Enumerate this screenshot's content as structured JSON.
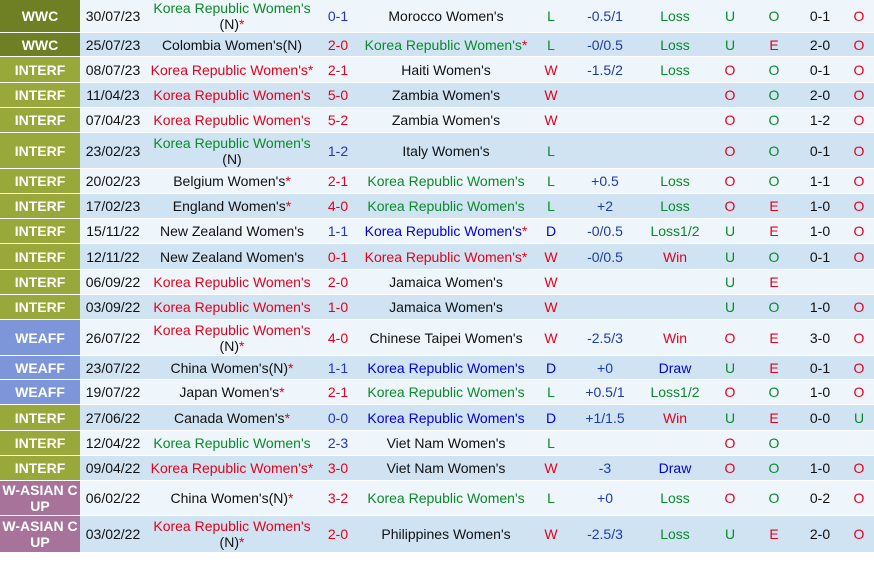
{
  "colors": {
    "home_red": "#e6001a",
    "team_green": "#0a8a2a",
    "team_blue": "#0000e0",
    "wwc_bg": "#6f7f24",
    "interf_bg": "#99a83a",
    "weaff_bg": "#7d95d9",
    "wasian_bg": "#a7739b"
  },
  "rows": [
    {
      "comp": "WWC",
      "date": "30/07/23",
      "home": "Korea Republic Women's",
      "home_suffix": "(N)",
      "home_star": "*",
      "home_color": "green",
      "score": "0-1",
      "score_color": "blue",
      "away": "Morocco Women's",
      "away_suffix": "",
      "away_star": "",
      "away_color": "black",
      "result": "L",
      "result_color": "green",
      "hc": "-0.5/1",
      "hc_res": "Loss",
      "hc_res_color": "green",
      "ou": "U",
      "ou_color": "green",
      "oe": "O",
      "oe_color": "green",
      "ht": "0-1",
      "last": "O",
      "last_color": "red"
    },
    {
      "comp": "WWC",
      "date": "25/07/23",
      "home": "Colombia Women's(N)",
      "home_suffix": "",
      "home_star": "",
      "home_color": "black",
      "score": "2-0",
      "score_color": "red",
      "away": "Korea Republic Women's",
      "away_suffix": "",
      "away_star": "*",
      "away_color": "green",
      "result": "L",
      "result_color": "green",
      "hc": "-0/0.5",
      "hc_res": "Loss",
      "hc_res_color": "green",
      "ou": "U",
      "ou_color": "green",
      "oe": "E",
      "oe_color": "red",
      "ht": "2-0",
      "last": "O",
      "last_color": "red"
    },
    {
      "comp": "INTERF",
      "date": "08/07/23",
      "home": "Korea Republic Women's",
      "home_suffix": "",
      "home_star": "*",
      "home_color": "red",
      "score": "2-1",
      "score_color": "red",
      "away": "Haiti Women's",
      "away_suffix": "",
      "away_star": "",
      "away_color": "black",
      "result": "W",
      "result_color": "red",
      "hc": "-1.5/2",
      "hc_res": "Loss",
      "hc_res_color": "green",
      "ou": "O",
      "ou_color": "red",
      "oe": "O",
      "oe_color": "green",
      "ht": "0-1",
      "last": "O",
      "last_color": "red"
    },
    {
      "comp": "INTERF",
      "date": "11/04/23",
      "home": "Korea Republic Women's",
      "home_suffix": "",
      "home_star": "",
      "home_color": "red",
      "score": "5-0",
      "score_color": "red",
      "away": "Zambia Women's",
      "away_suffix": "",
      "away_star": "",
      "away_color": "black",
      "result": "W",
      "result_color": "red",
      "hc": "",
      "hc_res": "",
      "hc_res_color": "green",
      "ou": "O",
      "ou_color": "red",
      "oe": "O",
      "oe_color": "green",
      "ht": "2-0",
      "last": "O",
      "last_color": "red"
    },
    {
      "comp": "INTERF",
      "date": "07/04/23",
      "home": "Korea Republic Women's",
      "home_suffix": "",
      "home_star": "",
      "home_color": "red",
      "score": "5-2",
      "score_color": "red",
      "away": "Zambia Women's",
      "away_suffix": "",
      "away_star": "",
      "away_color": "black",
      "result": "W",
      "result_color": "red",
      "hc": "",
      "hc_res": "",
      "hc_res_color": "green",
      "ou": "O",
      "ou_color": "red",
      "oe": "O",
      "oe_color": "green",
      "ht": "1-2",
      "last": "O",
      "last_color": "red"
    },
    {
      "comp": "INTERF",
      "date": "23/02/23",
      "home": "Korea Republic Women's",
      "home_suffix": "(N)",
      "home_star": "",
      "home_color": "green",
      "score": "1-2",
      "score_color": "blue",
      "away": "Italy Women's",
      "away_suffix": "",
      "away_star": "",
      "away_color": "black",
      "result": "L",
      "result_color": "green",
      "hc": "",
      "hc_res": "",
      "hc_res_color": "green",
      "ou": "O",
      "ou_color": "red",
      "oe": "O",
      "oe_color": "green",
      "ht": "0-1",
      "last": "O",
      "last_color": "red"
    },
    {
      "comp": "INTERF",
      "date": "20/02/23",
      "home": "Belgium Women's",
      "home_suffix": "",
      "home_star": "*",
      "home_color": "black",
      "score": "2-1",
      "score_color": "red",
      "away": "Korea Republic Women's",
      "away_suffix": "",
      "away_star": "",
      "away_color": "green",
      "result": "L",
      "result_color": "green",
      "hc": "+0.5",
      "hc_res": "Loss",
      "hc_res_color": "green",
      "ou": "O",
      "ou_color": "red",
      "oe": "O",
      "oe_color": "green",
      "ht": "1-1",
      "last": "O",
      "last_color": "red"
    },
    {
      "comp": "INTERF",
      "date": "17/02/23",
      "home": "England Women's",
      "home_suffix": "",
      "home_star": "*",
      "home_color": "black",
      "score": "4-0",
      "score_color": "red",
      "away": "Korea Republic Women's",
      "away_suffix": "",
      "away_star": "",
      "away_color": "green",
      "result": "L",
      "result_color": "green",
      "hc": "+2",
      "hc_res": "Loss",
      "hc_res_color": "green",
      "ou": "O",
      "ou_color": "red",
      "oe": "E",
      "oe_color": "red",
      "ht": "1-0",
      "last": "O",
      "last_color": "red"
    },
    {
      "comp": "INTERF",
      "date": "15/11/22",
      "home": "New Zealand Women's",
      "home_suffix": "",
      "home_star": "",
      "home_color": "black",
      "score": "1-1",
      "score_color": "blue",
      "away": "Korea Republic Women's",
      "away_suffix": "",
      "away_star": "*",
      "away_color": "blue",
      "result": "D",
      "result_color": "blue",
      "hc": "-0/0.5",
      "hc_res": "Loss1/2",
      "hc_res_color": "green",
      "ou": "U",
      "ou_color": "green",
      "oe": "E",
      "oe_color": "red",
      "ht": "1-0",
      "last": "O",
      "last_color": "red"
    },
    {
      "comp": "INTERF",
      "date": "12/11/22",
      "home": "New Zealand Women's",
      "home_suffix": "",
      "home_star": "",
      "home_color": "black",
      "score": "0-1",
      "score_color": "red",
      "away": "Korea Republic Women's",
      "away_suffix": "",
      "away_star": "*",
      "away_color": "red",
      "result": "W",
      "result_color": "red",
      "hc": "-0/0.5",
      "hc_res": "Win",
      "hc_res_color": "red",
      "ou": "U",
      "ou_color": "green",
      "oe": "O",
      "oe_color": "green",
      "ht": "0-1",
      "last": "O",
      "last_color": "red"
    },
    {
      "comp": "INTERF",
      "date": "06/09/22",
      "home": "Korea Republic Women's",
      "home_suffix": "",
      "home_star": "",
      "home_color": "red",
      "score": "2-0",
      "score_color": "red",
      "away": "Jamaica Women's",
      "away_suffix": "",
      "away_star": "",
      "away_color": "black",
      "result": "W",
      "result_color": "red",
      "hc": "",
      "hc_res": "",
      "hc_res_color": "green",
      "ou": "U",
      "ou_color": "green",
      "oe": "E",
      "oe_color": "red",
      "ht": "",
      "last": "",
      "last_color": "red"
    },
    {
      "comp": "INTERF",
      "date": "03/09/22",
      "home": "Korea Republic Women's",
      "home_suffix": "",
      "home_star": "",
      "home_color": "red",
      "score": "1-0",
      "score_color": "red",
      "away": "Jamaica Women's",
      "away_suffix": "",
      "away_star": "",
      "away_color": "black",
      "result": "W",
      "result_color": "red",
      "hc": "",
      "hc_res": "",
      "hc_res_color": "green",
      "ou": "U",
      "ou_color": "green",
      "oe": "O",
      "oe_color": "green",
      "ht": "1-0",
      "last": "O",
      "last_color": "red"
    },
    {
      "comp": "WEAFF",
      "date": "26/07/22",
      "home": "Korea Republic Women's",
      "home_suffix": "(N)",
      "home_star": "*",
      "home_color": "red",
      "score": "4-0",
      "score_color": "red",
      "away": "Chinese Taipei Women's",
      "away_suffix": "",
      "away_star": "",
      "away_color": "black",
      "result": "W",
      "result_color": "red",
      "hc": "-2.5/3",
      "hc_res": "Win",
      "hc_res_color": "red",
      "ou": "O",
      "ou_color": "red",
      "oe": "E",
      "oe_color": "red",
      "ht": "3-0",
      "last": "O",
      "last_color": "red"
    },
    {
      "comp": "WEAFF",
      "date": "23/07/22",
      "home": "China Women's(N)",
      "home_suffix": "",
      "home_star": "*",
      "home_color": "black",
      "score": "1-1",
      "score_color": "blue",
      "away": "Korea Republic Women's",
      "away_suffix": "",
      "away_star": "",
      "away_color": "blue",
      "result": "D",
      "result_color": "blue",
      "hc": "+0",
      "hc_res": "Draw",
      "hc_res_color": "blue",
      "ou": "U",
      "ou_color": "green",
      "oe": "E",
      "oe_color": "red",
      "ht": "0-1",
      "last": "O",
      "last_color": "red"
    },
    {
      "comp": "WEAFF",
      "date": "19/07/22",
      "home": "Japan Women's",
      "home_suffix": "",
      "home_star": "*",
      "home_color": "black",
      "score": "2-1",
      "score_color": "red",
      "away": "Korea Republic Women's",
      "away_suffix": "",
      "away_star": "",
      "away_color": "green",
      "result": "L",
      "result_color": "green",
      "hc": "+0.5/1",
      "hc_res": "Loss1/2",
      "hc_res_color": "green",
      "ou": "O",
      "ou_color": "red",
      "oe": "O",
      "oe_color": "green",
      "ht": "1-0",
      "last": "O",
      "last_color": "red"
    },
    {
      "comp": "INTERF",
      "date": "27/06/22",
      "home": "Canada Women's",
      "home_suffix": "",
      "home_star": "*",
      "home_color": "black",
      "score": "0-0",
      "score_color": "blue",
      "away": "Korea Republic Women's",
      "away_suffix": "",
      "away_star": "",
      "away_color": "blue",
      "result": "D",
      "result_color": "blue",
      "hc": "+1/1.5",
      "hc_res": "Win",
      "hc_res_color": "red",
      "ou": "U",
      "ou_color": "green",
      "oe": "E",
      "oe_color": "red",
      "ht": "0-0",
      "last": "U",
      "last_color": "green"
    },
    {
      "comp": "INTERF",
      "date": "12/04/22",
      "home": "Korea Republic Women's",
      "home_suffix": "",
      "home_star": "",
      "home_color": "green",
      "score": "2-3",
      "score_color": "blue",
      "away": "Viet Nam Women's",
      "away_suffix": "",
      "away_star": "",
      "away_color": "black",
      "result": "L",
      "result_color": "green",
      "hc": "",
      "hc_res": "",
      "hc_res_color": "green",
      "ou": "O",
      "ou_color": "red",
      "oe": "O",
      "oe_color": "green",
      "ht": "",
      "last": "",
      "last_color": "red"
    },
    {
      "comp": "INTERF",
      "date": "09/04/22",
      "home": "Korea Republic Women's",
      "home_suffix": "",
      "home_star": "*",
      "home_color": "red",
      "score": "3-0",
      "score_color": "red",
      "away": "Viet Nam Women's",
      "away_suffix": "",
      "away_star": "",
      "away_color": "black",
      "result": "W",
      "result_color": "red",
      "hc": "-3",
      "hc_res": "Draw",
      "hc_res_color": "blue",
      "ou": "O",
      "ou_color": "red",
      "oe": "O",
      "oe_color": "green",
      "ht": "1-0",
      "last": "O",
      "last_color": "red"
    },
    {
      "comp": "W-ASIAN C UP",
      "date": "06/02/22",
      "home": "China Women's(N)",
      "home_suffix": "",
      "home_star": "*",
      "home_color": "black",
      "score": "3-2",
      "score_color": "red",
      "away": "Korea Republic Women's",
      "away_suffix": "",
      "away_star": "",
      "away_color": "green",
      "result": "L",
      "result_color": "green",
      "hc": "+0",
      "hc_res": "Loss",
      "hc_res_color": "green",
      "ou": "O",
      "ou_color": "red",
      "oe": "O",
      "oe_color": "green",
      "ht": "0-2",
      "last": "O",
      "last_color": "red"
    },
    {
      "comp": "W-ASIAN C UP",
      "date": "03/02/22",
      "home": "Korea Republic Women's",
      "home_suffix": "(N)",
      "home_star": "*",
      "home_color": "red",
      "score": "2-0",
      "score_color": "red",
      "away": "Philippines Women's",
      "away_suffix": "",
      "away_star": "",
      "away_color": "black",
      "result": "W",
      "result_color": "red",
      "hc": "-2.5/3",
      "hc_res": "Loss",
      "hc_res_color": "green",
      "ou": "U",
      "ou_color": "green",
      "oe": "E",
      "oe_color": "red",
      "ht": "2-0",
      "last": "O",
      "last_color": "red"
    }
  ]
}
